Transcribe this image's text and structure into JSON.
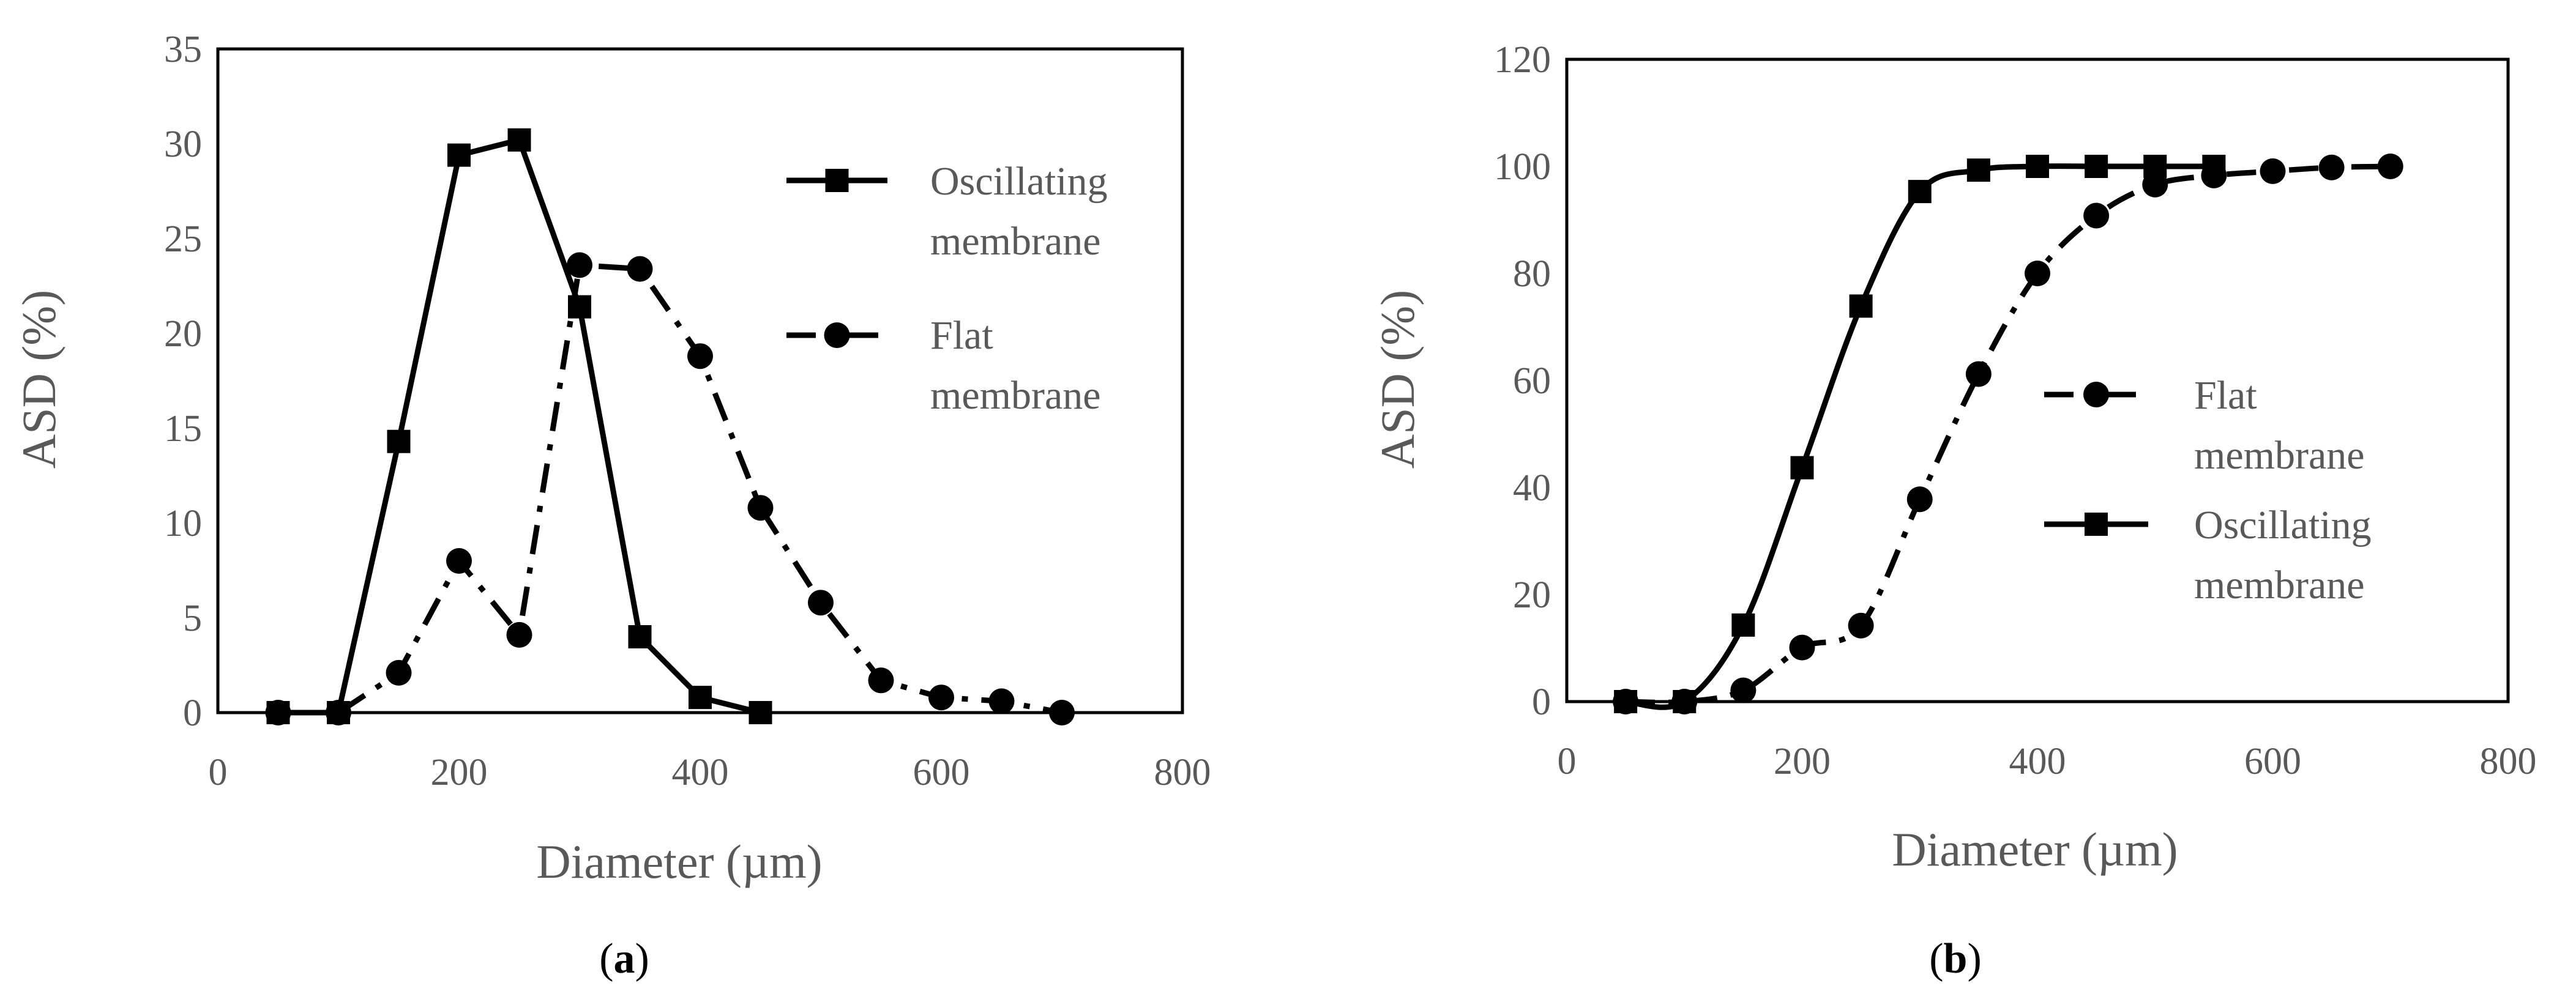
{
  "chart_data": [
    {
      "type": "line",
      "panel": "a",
      "panel_label": {
        "open": "(",
        "letter": "a",
        "close": ")"
      },
      "xlabel": "Diameter (µm)",
      "ylabel": "ASD (%)",
      "xlim": [
        0,
        800
      ],
      "ylim": [
        0,
        35
      ],
      "xticks": [
        0,
        200,
        400,
        600,
        800
      ],
      "yticks": [
        0,
        5,
        10,
        15,
        20,
        25,
        30,
        35
      ],
      "grid": false,
      "legend_position": "top-right",
      "series": [
        {
          "name": "Oscillating membrane",
          "legend_lines": [
            "Oscillating",
            "membrane"
          ],
          "marker": "square",
          "line_style": "solid",
          "smooth": false,
          "x": [
            50,
            100,
            150,
            200,
            250,
            300,
            350,
            400,
            450
          ],
          "y": [
            0,
            0,
            14.3,
            29.4,
            30.2,
            21.4,
            4.0,
            0.8,
            0
          ]
        },
        {
          "name": "Flat membrane",
          "legend_lines": [
            "Flat",
            "membrane"
          ],
          "marker": "circle",
          "line_style": "dashdot",
          "smooth": false,
          "x": [
            50,
            100,
            150,
            200,
            250,
            300,
            350,
            400,
            450,
            500,
            550,
            600,
            650,
            700
          ],
          "y": [
            0,
            0,
            2.1,
            8.0,
            4.1,
            23.6,
            23.4,
            18.8,
            10.8,
            5.8,
            1.7,
            0.8,
            0.6,
            0
          ]
        }
      ]
    },
    {
      "type": "line",
      "panel": "b",
      "panel_label": {
        "open": "(",
        "letter": "b",
        "close": ")"
      },
      "xlabel": "Diameter (µm)",
      "ylabel": "ASD (%)",
      "xlim": [
        0,
        800
      ],
      "ylim": [
        0,
        120
      ],
      "xticks": [
        0,
        200,
        400,
        600,
        800
      ],
      "yticks": [
        0,
        20,
        40,
        60,
        80,
        100,
        120
      ],
      "grid": false,
      "legend_position": "center-right",
      "series": [
        {
          "name": "Flat membrane",
          "legend_lines": [
            "Flat",
            "membrane"
          ],
          "marker": "circle",
          "line_style": "dashdot",
          "smooth": true,
          "x": [
            50,
            100,
            150,
            200,
            250,
            300,
            350,
            400,
            450,
            500,
            550,
            600,
            650,
            700
          ],
          "y": [
            0,
            0,
            2.1,
            10.1,
            14.2,
            37.8,
            61.2,
            80.0,
            90.8,
            96.6,
            98.3,
            99.1,
            99.8,
            100
          ]
        },
        {
          "name": "Oscillating membrane",
          "legend_lines": [
            "Oscillating",
            "membrane"
          ],
          "marker": "square",
          "line_style": "solid",
          "smooth": true,
          "x": [
            50,
            100,
            150,
            200,
            250,
            300,
            350,
            400,
            450,
            500,
            550
          ],
          "y": [
            0,
            0,
            14.3,
            43.7,
            73.9,
            95.3,
            99.3,
            100,
            100,
            100,
            100
          ]
        }
      ]
    }
  ]
}
